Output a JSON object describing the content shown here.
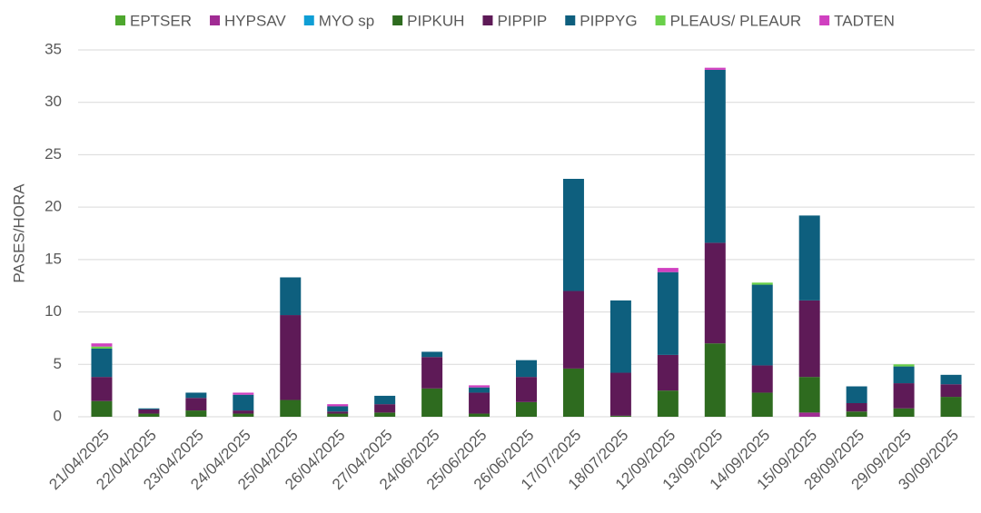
{
  "chart_data": {
    "type": "bar",
    "stacked": true,
    "y_label": "PASES/HORA",
    "categories": [
      "21/04/2025",
      "22/04/2025",
      "23/04/2025",
      "24/04/2025",
      "25/04/2025",
      "26/04/2025",
      "27/04/2025",
      "24/06/2025",
      "25/06/2025",
      "26/06/2025",
      "17/07/2025",
      "18/07/2025",
      "12/09/2025",
      "13/09/2025",
      "14/09/2025",
      "15/09/2025",
      "28/09/2025",
      "29/09/2025",
      "30/09/2025"
    ],
    "series": [
      {
        "name": "EPTSER",
        "color": "#4ea72e",
        "values": [
          0,
          0,
          0,
          0,
          0,
          0,
          0,
          0,
          0,
          0,
          0,
          0,
          0,
          0,
          0,
          0,
          0,
          0,
          0
        ]
      },
      {
        "name": "HYPSAV",
        "color": "#a02b93",
        "values": [
          0,
          0,
          0,
          0,
          0,
          0,
          0,
          0,
          0,
          0,
          0,
          0,
          0,
          0,
          0,
          0.4,
          0,
          0,
          0
        ]
      },
      {
        "name": "MYO sp",
        "color": "#0f9ed5",
        "values": [
          0,
          0,
          0,
          0,
          0,
          0,
          0,
          0,
          0,
          0,
          0,
          0,
          0,
          0,
          0,
          0,
          0,
          0,
          0
        ]
      },
      {
        "name": "PIPKUH",
        "color": "#2e6b1f",
        "values": [
          1.5,
          0.3,
          0.6,
          0.3,
          1.6,
          0.3,
          0.4,
          2.7,
          0.3,
          1.4,
          4.6,
          0.1,
          2.5,
          7.0,
          2.3,
          3.4,
          0.5,
          0.8,
          1.9
        ]
      },
      {
        "name": "PIPPIP",
        "color": "#5e1a57",
        "values": [
          2.3,
          0.4,
          1.2,
          0.3,
          8.1,
          0.2,
          0.8,
          3.0,
          2.0,
          2.4,
          7.4,
          4.1,
          3.4,
          9.6,
          2.6,
          7.3,
          0.8,
          2.4,
          1.2
        ]
      },
      {
        "name": "PIPPYG",
        "color": "#0e5f7e",
        "values": [
          2.7,
          0.1,
          0.5,
          1.5,
          3.6,
          0.5,
          0.8,
          0.5,
          0.5,
          1.6,
          10.7,
          6.9,
          7.9,
          16.5,
          7.7,
          8.1,
          1.6,
          1.6,
          0.9
        ]
      },
      {
        "name": "PLEAUS/ PLEAUR",
        "color": "#6ad04a",
        "values": [
          0.2,
          0,
          0,
          0,
          0,
          0,
          0,
          0,
          0,
          0,
          0,
          0,
          0,
          0,
          0.2,
          0,
          0,
          0.2,
          0
        ]
      },
      {
        "name": "TADTEN",
        "color": "#d040c0",
        "values": [
          0.3,
          0,
          0,
          0.2,
          0,
          0.2,
          0,
          0,
          0.2,
          0,
          0,
          0,
          0.4,
          0.2,
          0,
          0,
          0,
          0,
          0
        ]
      }
    ],
    "ylim": [
      0,
      35
    ],
    "yticks": [
      0,
      5,
      10,
      15,
      20,
      25,
      30,
      35
    ],
    "grid": true,
    "legend": "top"
  }
}
